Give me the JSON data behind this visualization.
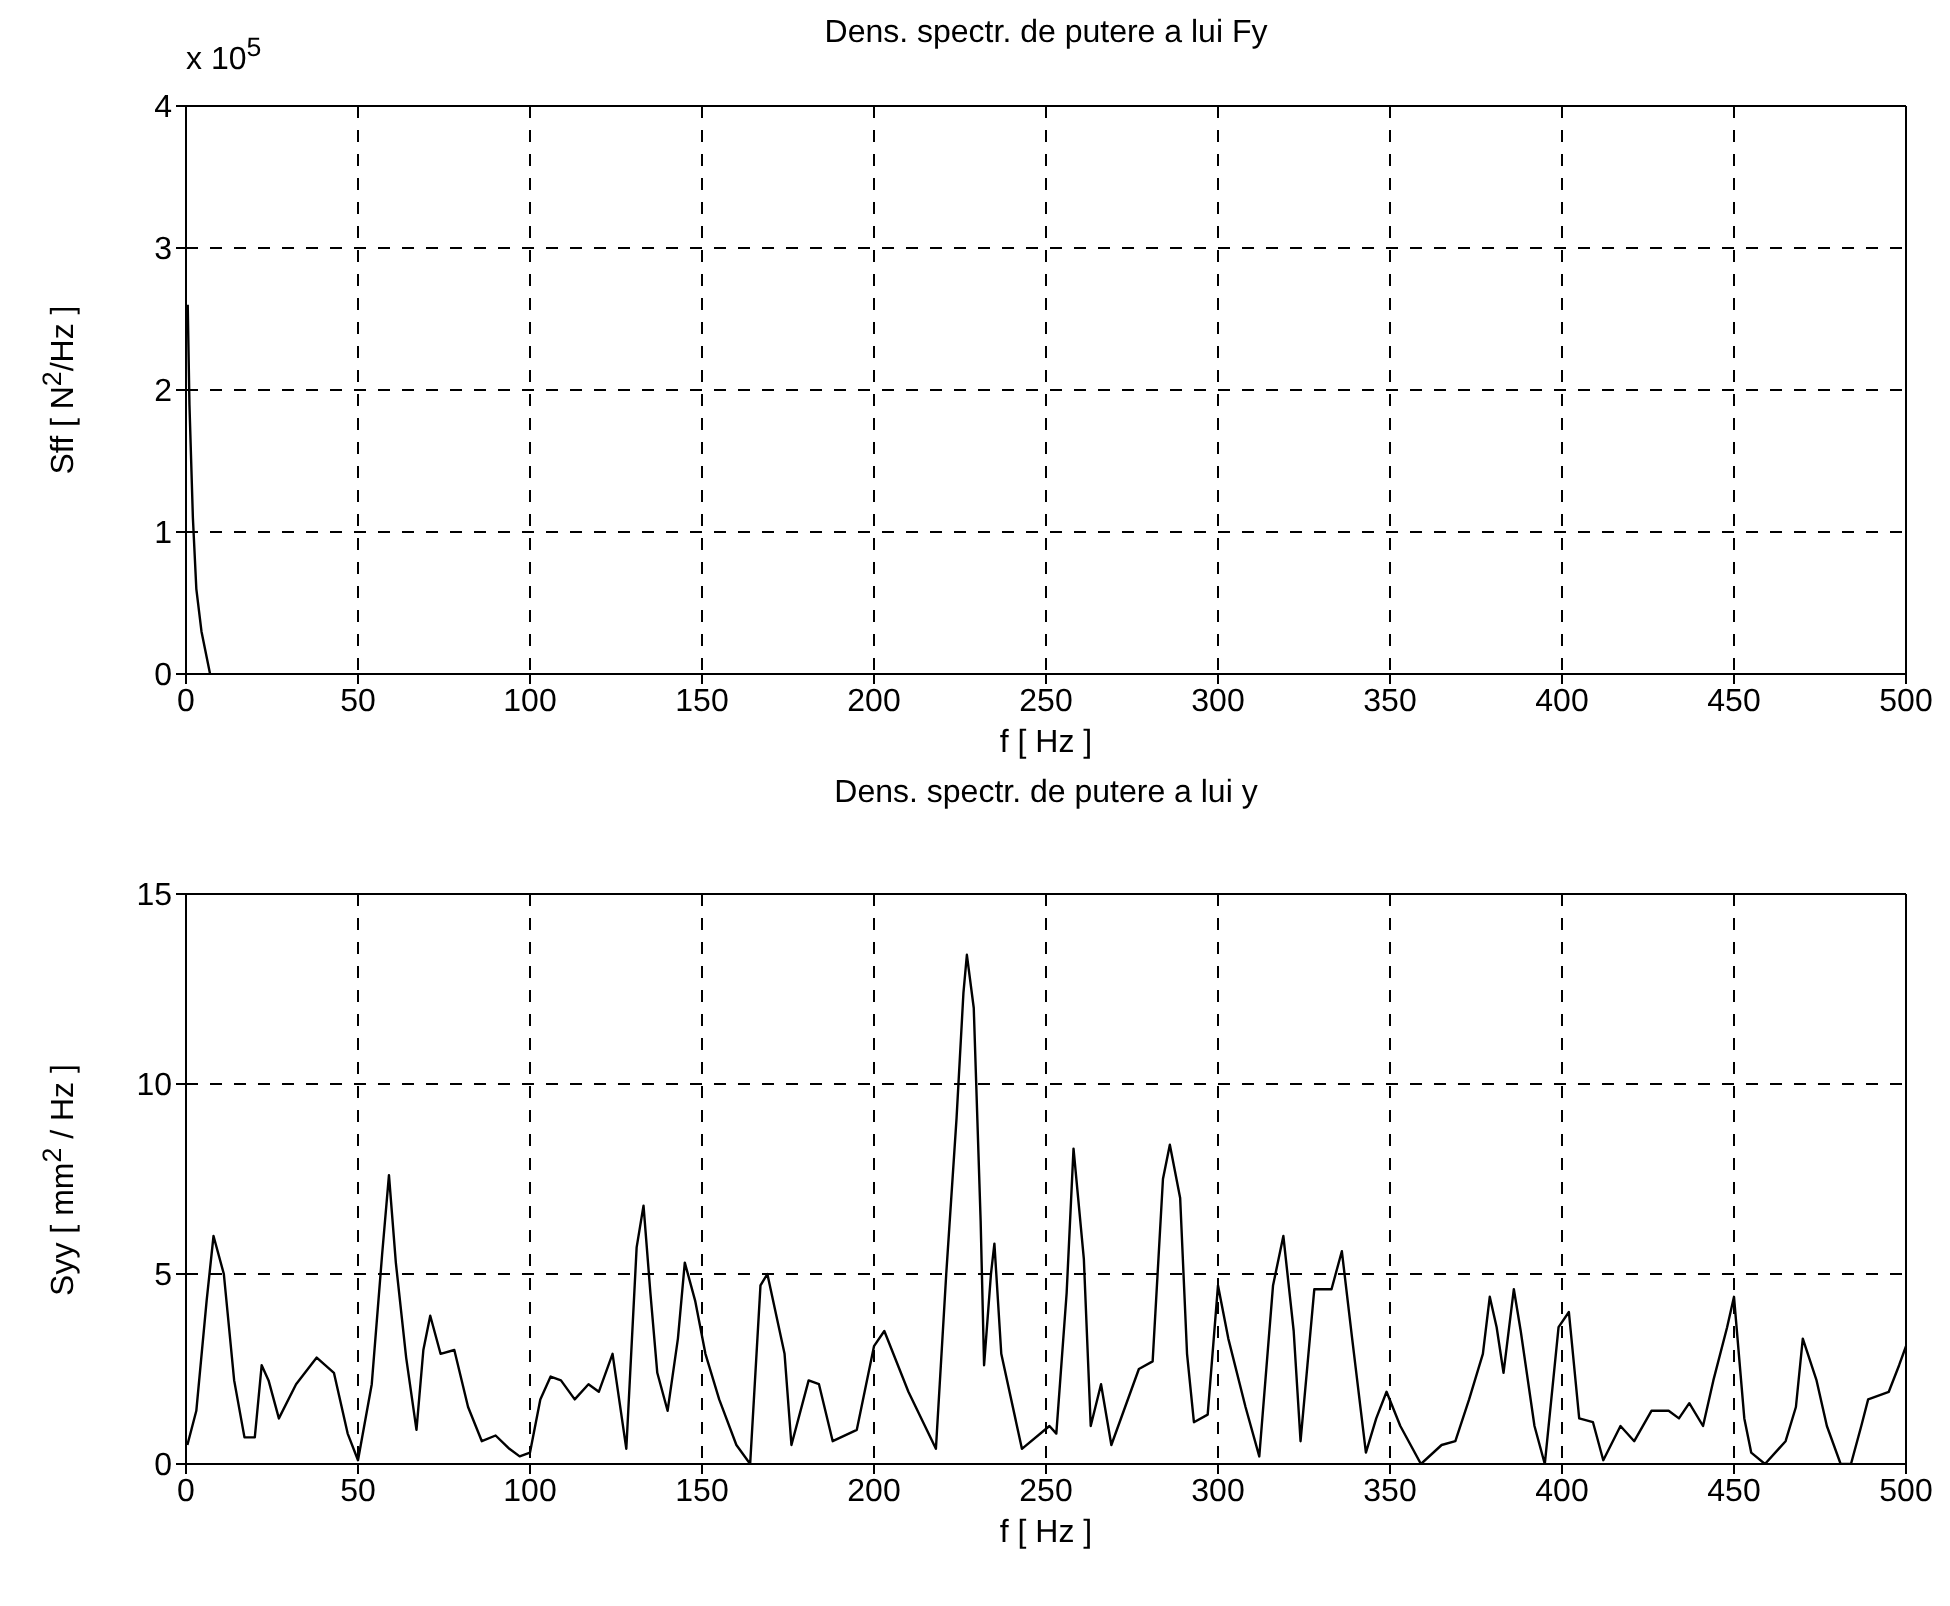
{
  "chart_data": [
    {
      "type": "line",
      "title": "Dens. spectr. de putere a lui Fy",
      "xlabel": "f [ Hz ]",
      "ylabel": "Sff [ N$^{2}$/Hz ]",
      "annotations": [
        "x 10$^{5}$"
      ],
      "xlim": [
        0,
        500
      ],
      "xticks": [
        0,
        50,
        100,
        150,
        200,
        250,
        300,
        350,
        400,
        450,
        500
      ],
      "ylim": [
        0,
        4
      ],
      "yticks": [
        0,
        1,
        2,
        3,
        4
      ],
      "grid": true,
      "series": [
        {
          "color": "#000000",
          "x": [
            0.5,
            1,
            2,
            3,
            4.5,
            7
          ],
          "values": [
            2.6,
            1.9,
            1.1,
            0.6,
            0.3,
            0
          ]
        }
      ]
    },
    {
      "type": "line",
      "title": "Dens. spectr. de putere a lui y",
      "xlabel": "f [ Hz ]",
      "ylabel": "Syy [ mm$^{2}$ / Hz ]",
      "xlim": [
        0,
        500
      ],
      "xticks": [
        0,
        50,
        100,
        150,
        200,
        250,
        300,
        350,
        400,
        450,
        500
      ],
      "ylim": [
        0,
        15
      ],
      "yticks": [
        0,
        5,
        10,
        15
      ],
      "grid": true,
      "series": [
        {
          "color": "#000000",
          "x": [
            0.4,
            3,
            6,
            8,
            11,
            14,
            17,
            20,
            22,
            24,
            27,
            32,
            38,
            43,
            47,
            50,
            54,
            57,
            59,
            61,
            64,
            67,
            69,
            71,
            74,
            78,
            82,
            86,
            90,
            94,
            97,
            100,
            103,
            106,
            109,
            113,
            117,
            120,
            124,
            128,
            131,
            133,
            135,
            137,
            140,
            143,
            145,
            148,
            151,
            155,
            160,
            164,
            167,
            169,
            174,
            176,
            181,
            184,
            188,
            195,
            200,
            203,
            210,
            218,
            221,
            224,
            226,
            227,
            229,
            231,
            232,
            234,
            235,
            237,
            243,
            251,
            253,
            256,
            258,
            261,
            263,
            266,
            269,
            277,
            281,
            284,
            286,
            289,
            291,
            293,
            297,
            300,
            303,
            308,
            312,
            316,
            319,
            322,
            324,
            326,
            328,
            333,
            336,
            339,
            343,
            346,
            349,
            353,
            359,
            365,
            369,
            373,
            377,
            379,
            381,
            383,
            386,
            388,
            392,
            395,
            399,
            402,
            405,
            409,
            412,
            417,
            421,
            426,
            431,
            434,
            437,
            441,
            444,
            448,
            450,
            453,
            455,
            459,
            465,
            468,
            470,
            474,
            477,
            481,
            484,
            487,
            489,
            495,
            498,
            500
          ],
          "values": [
            0.5,
            1.4,
            4.3,
            6.0,
            5,
            2.2,
            0.7,
            0.7,
            2.6,
            2.2,
            1.2,
            2.1,
            2.8,
            2.4,
            0.8,
            0.1,
            2.1,
            5.5,
            7.6,
            5.3,
            2.8,
            0.9,
            3.0,
            3.9,
            2.9,
            3.0,
            1.5,
            0.6,
            0.75,
            0.4,
            0.2,
            0.3,
            1.7,
            2.3,
            2.2,
            1.7,
            2.1,
            1.9,
            2.9,
            0.4,
            5.7,
            6.8,
            4.5,
            2.4,
            1.4,
            3.3,
            5.3,
            4.3,
            2.9,
            1.7,
            0.5,
            0,
            4.7,
            5.0,
            2.9,
            0.5,
            2.2,
            2.1,
            0.6,
            0.9,
            3.1,
            3.5,
            1.9,
            0.4,
            5.0,
            9.1,
            12.4,
            13.4,
            12.0,
            6.4,
            2.6,
            5.0,
            5.8,
            2.9,
            0.4,
            1.0,
            0.8,
            4.5,
            8.3,
            5.4,
            1.0,
            2.1,
            0.5,
            2.5,
            2.7,
            7.5,
            8.4,
            7.0,
            2.9,
            1.1,
            1.3,
            4.7,
            3.3,
            1.5,
            0.2,
            4.7,
            6.0,
            3.5,
            0.6,
            2.6,
            4.6,
            4.6,
            5.6,
            3.3,
            0.3,
            1.2,
            1.9,
            1.0,
            0,
            0.5,
            0.6,
            1.7,
            2.9,
            4.4,
            3.6,
            2.4,
            4.6,
            3.5,
            1.0,
            0,
            3.6,
            4.0,
            1.2,
            1.1,
            0.1,
            1.0,
            0.6,
            1.4,
            1.4,
            1.2,
            1.6,
            1.0,
            2.2,
            3.6,
            4.4,
            1.2,
            0.3,
            0,
            0.6,
            1.5,
            3.3,
            2.2,
            1.0,
            0,
            0,
            1.0,
            1.7,
            1.9,
            2.6,
            3.1
          ]
        }
      ]
    }
  ]
}
